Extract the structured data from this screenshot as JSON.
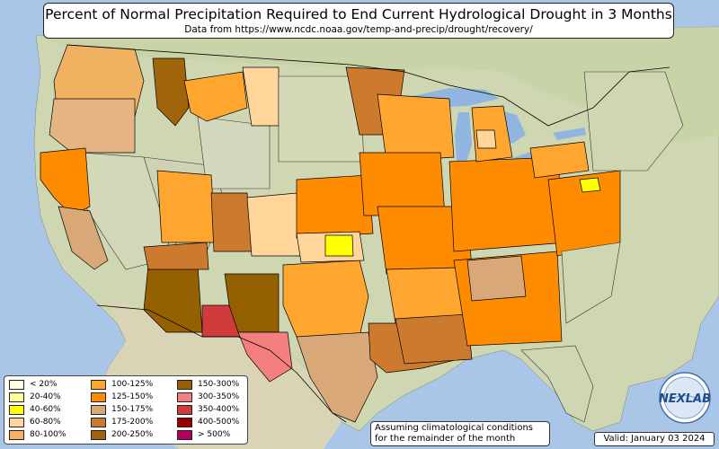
{
  "title": "Percent of Normal Precipitation Required to End Current Hydrological Drought in 3 Months",
  "subtitle": "Data from https://www.ncdc.noaa.gov/temp-and-precip/drought/recovery/",
  "legend": [
    {
      "label": "< 20%",
      "color": "#ffffe0"
    },
    {
      "label": "20-40%",
      "color": "#ffff99"
    },
    {
      "label": "40-60%",
      "color": "#ffff00"
    },
    {
      "label": "60-80%",
      "color": "#ffd59a"
    },
    {
      "label": "80-100%",
      "color": "#f5b063"
    },
    {
      "label": "100-125%",
      "color": "#ffa630"
    },
    {
      "label": "125-150%",
      "color": "#ff8c00"
    },
    {
      "label": "150-175%",
      "color": "#d8a878"
    },
    {
      "label": "175-200%",
      "color": "#cc7a2e"
    },
    {
      "label": "200-250%",
      "color": "#a0620a"
    },
    {
      "label": "150-300%",
      "color": "#946000"
    },
    {
      "label": "300-350%",
      "color": "#f47f7f"
    },
    {
      "label": "350-400%",
      "color": "#d03c3c"
    },
    {
      "label": "400-500%",
      "color": "#9b0000"
    },
    {
      "label": "> 500%",
      "color": "#b0005c"
    }
  ],
  "note_line1": "Assuming climatological conditions",
  "note_line2": "for the remainder of the month",
  "valid": "Valid: January 03 2024",
  "logo_text": "NEXLAB",
  "colors": {
    "ocean": "#a9c6e8",
    "land": "#cfd8b0",
    "lake": "#8fb5e0",
    "border": "#000000"
  }
}
